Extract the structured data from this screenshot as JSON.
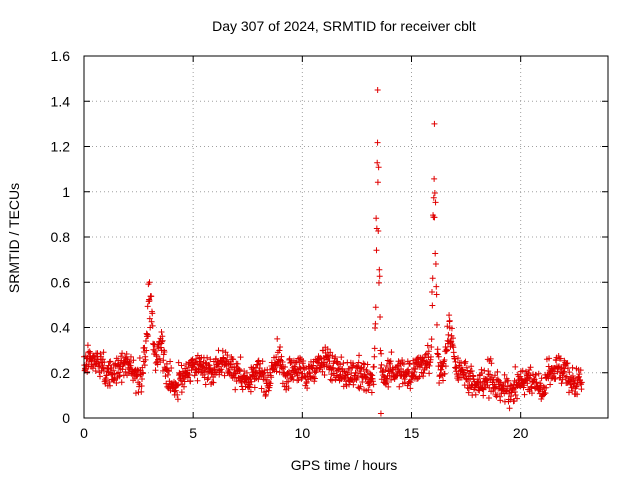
{
  "chart_data": {
    "type": "scatter",
    "title": "Day 307 of 2024, SRMTID for receiver cblt",
    "xlabel": "GPS time / hours",
    "ylabel": "SRMTID / TECUs",
    "xlim": [
      0,
      24
    ],
    "ylim": [
      0,
      1.6
    ],
    "x_ticks": [
      0,
      5,
      10,
      15,
      20
    ],
    "x_tick_labels": [
      "0",
      "5",
      "10",
      "15",
      "20"
    ],
    "y_ticks": [
      0,
      0.2,
      0.4,
      0.6,
      0.8,
      1.0,
      1.2,
      1.4,
      1.6
    ],
    "y_tick_labels": [
      "0",
      "0.2",
      "0.4",
      "0.6",
      "0.8",
      "1",
      "1.2",
      "1.4",
      "1.6"
    ],
    "grid": true,
    "marker": "+",
    "marker_color": "#e00000",
    "series": [
      {
        "name": "SRMTID",
        "x_range": [
          0,
          22.8
        ],
        "baseline_mean": 0.2,
        "baseline_spread": 0.07,
        "peaks": [
          {
            "x": 3.0,
            "y": 0.6
          },
          {
            "x": 3.55,
            "y": 0.38
          },
          {
            "x": 8.85,
            "y": 0.35
          },
          {
            "x": 13.45,
            "y": 1.45
          },
          {
            "x": 16.05,
            "y": 1.3
          },
          {
            "x": 16.75,
            "y": 0.43
          }
        ],
        "minimum": {
          "x": 13.6,
          "y": 0.02
        }
      }
    ]
  }
}
